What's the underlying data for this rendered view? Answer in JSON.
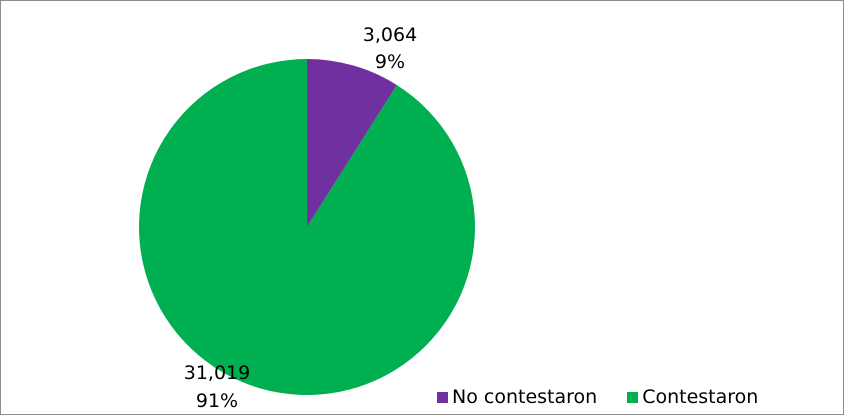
{
  "chart_data": {
    "type": "pie",
    "title": "",
    "series": [
      {
        "name": "No contestaron",
        "value": 3064,
        "value_label": "3,064",
        "percent_label": "9%",
        "color": "#7030a0"
      },
      {
        "name": "Contestaron",
        "value": 31019,
        "value_label": "31,019",
        "percent_label": "91%",
        "color": "#00b050"
      }
    ],
    "legend": {
      "position": "bottom-right",
      "items": [
        "No contestaron",
        "Contestaron"
      ]
    }
  }
}
